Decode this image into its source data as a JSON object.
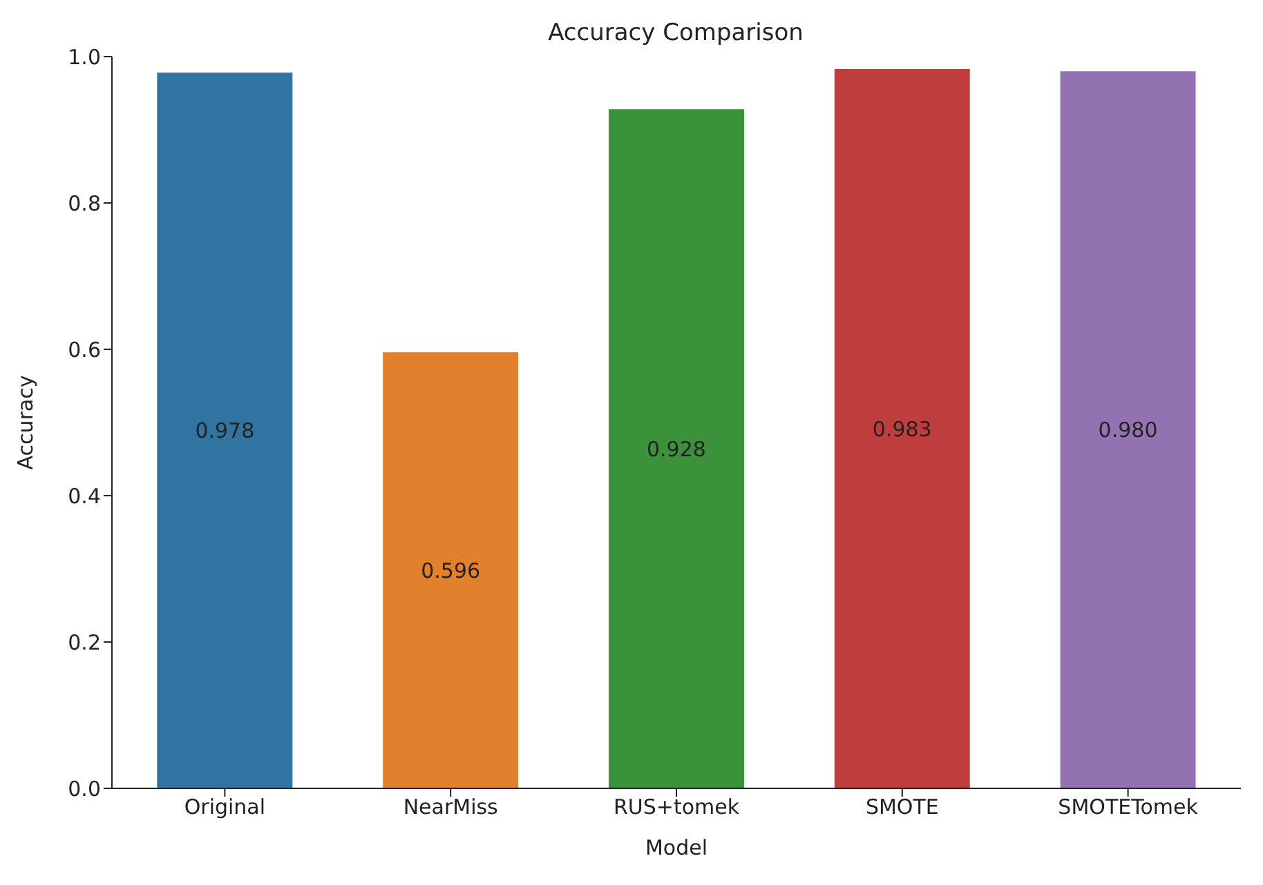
{
  "chart_data": {
    "type": "bar",
    "title": "Accuracy Comparison",
    "xlabel": "Model",
    "ylabel": "Accuracy",
    "categories": [
      "Original",
      "NearMiss",
      "RUS+tomek",
      "SMOTE",
      "SMOTETomek"
    ],
    "values": [
      0.978,
      0.596,
      0.928,
      0.983,
      0.98
    ],
    "value_labels": [
      "0.978",
      "0.596",
      "0.928",
      "0.983",
      "0.980"
    ],
    "colors": [
      "#3274a1",
      "#e1812c",
      "#3a923a",
      "#c03d3e",
      "#9372b2"
    ],
    "ylim": [
      0,
      1
    ],
    "yticks": [
      {
        "value": 0,
        "label": "0.0"
      },
      {
        "value": 0.2,
        "label": "0.2"
      },
      {
        "value": 0.4,
        "label": "0.4"
      },
      {
        "value": 0.6,
        "label": "0.6"
      },
      {
        "value": 0.8,
        "label": "0.8"
      },
      {
        "value": 1,
        "label": "1.0"
      }
    ],
    "grid": false,
    "legend": false
  }
}
